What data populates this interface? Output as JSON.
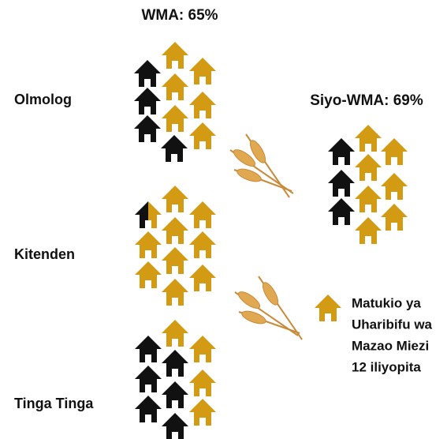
{
  "header": {
    "left": "WMA: 65%",
    "right": "Siyo-WMA: 69%"
  },
  "groups": [
    {
      "label": "Olmolog"
    },
    {
      "label": "Kitenden"
    },
    {
      "label": "Tinga Tinga"
    }
  ],
  "legend": {
    "lines": [
      "Matukio ya",
      "Uharibifu wa",
      "Mazao Miezi",
      "12 iliyopita"
    ]
  }
}
